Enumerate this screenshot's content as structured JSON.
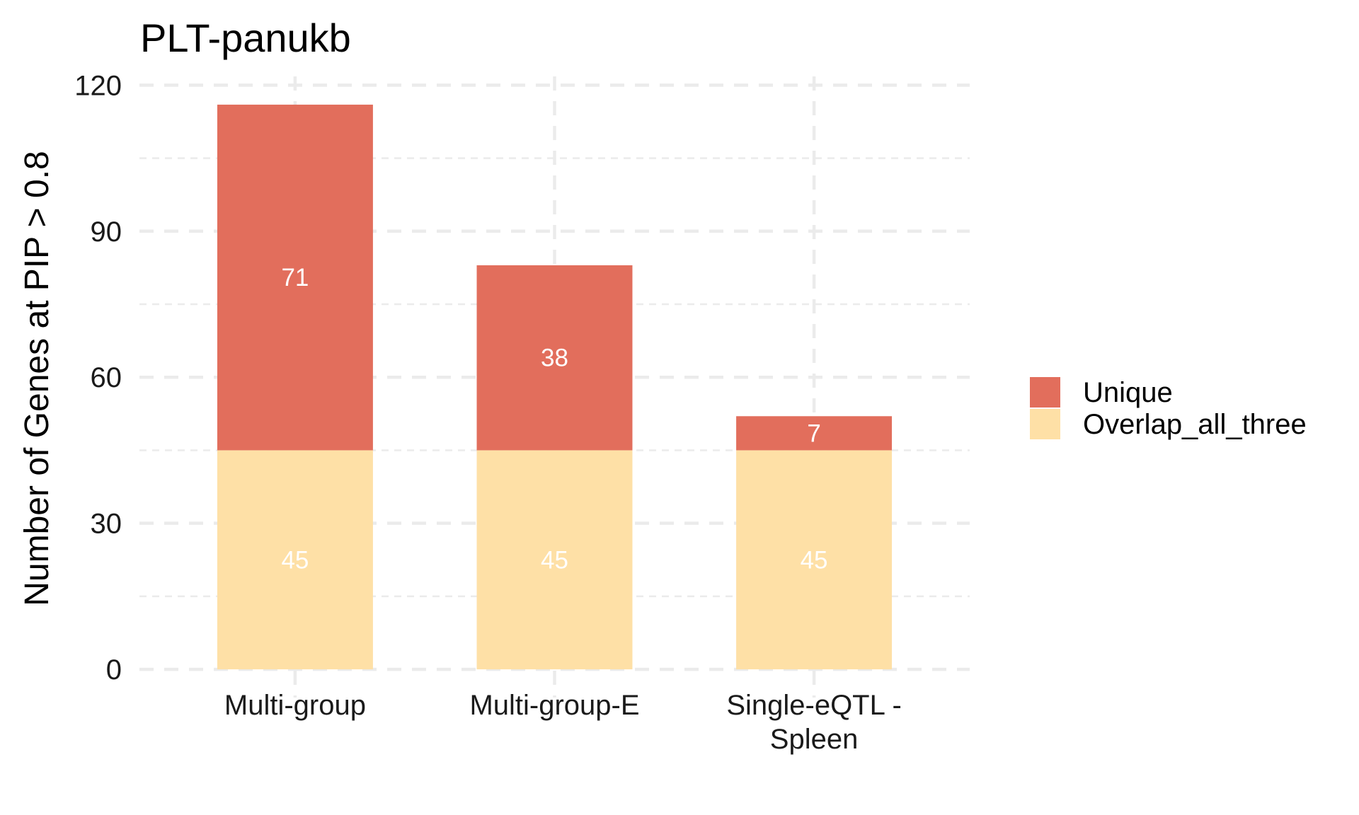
{
  "chart_data": {
    "type": "bar",
    "stacked": true,
    "title": "PLT-panukb",
    "xlabel": "",
    "ylabel": "Number of Genes at PIP > 0.8",
    "categories": [
      [
        "Multi-group"
      ],
      [
        "Multi-group-E"
      ],
      [
        "Single-eQTL -",
        "Spleen"
      ]
    ],
    "series": [
      {
        "name": "Overlap_all_three",
        "values": [
          45,
          45,
          45
        ],
        "color": "#FEE0A6"
      },
      {
        "name": "Unique",
        "values": [
          71,
          38,
          7
        ],
        "color": "#E26E5C"
      }
    ],
    "legend_order": [
      "Unique",
      "Overlap_all_three"
    ],
    "legend_position": "right",
    "ylim": [
      -5.8,
      121.8
    ],
    "yticks": [
      0,
      30,
      60,
      90,
      120
    ],
    "grid": true,
    "grid_style": "dashed",
    "data_label_color": "#ffffff"
  }
}
